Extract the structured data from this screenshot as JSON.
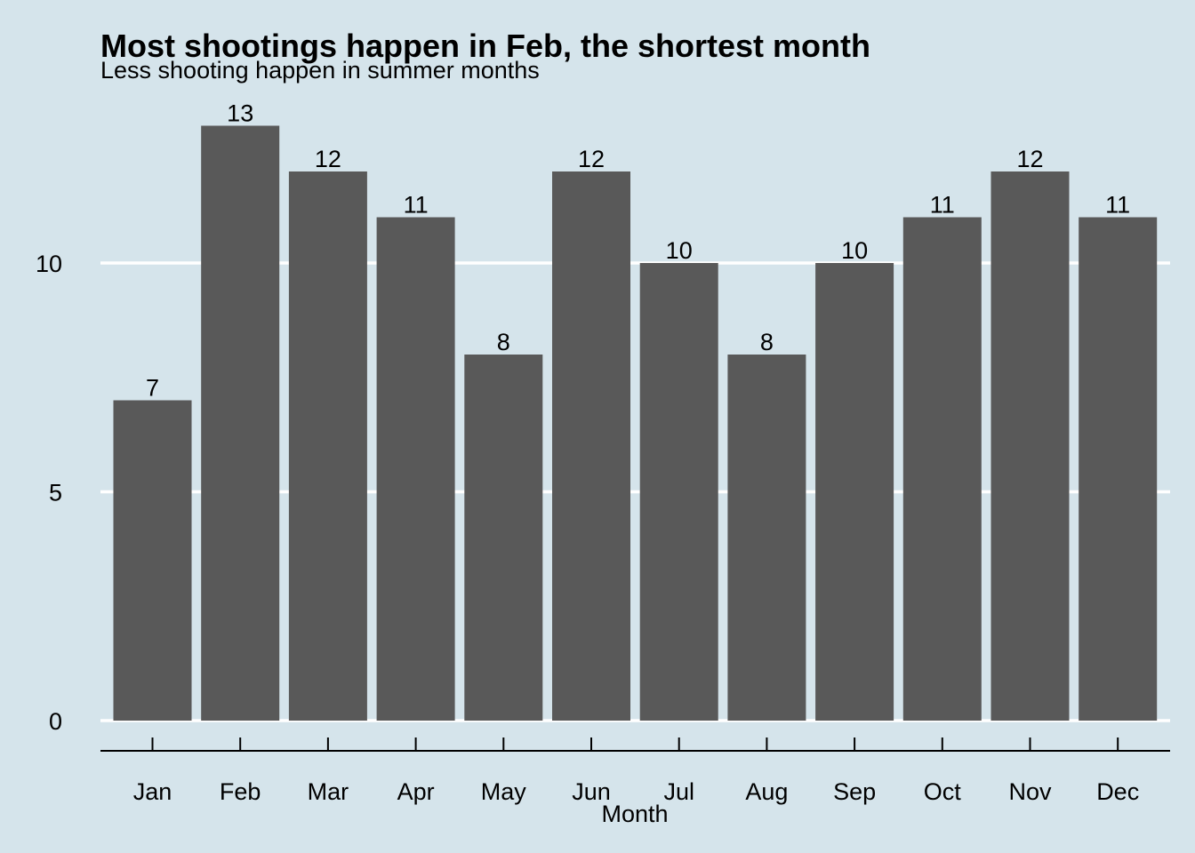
{
  "chart_data": {
    "type": "bar",
    "title": "Most shootings happen in Feb, the shortest month",
    "subtitle": "Less shooting happen in summer months",
    "xlabel": "Month",
    "ylabel": "",
    "categories": [
      "Jan",
      "Feb",
      "Mar",
      "Apr",
      "May",
      "Jun",
      "Jul",
      "Aug",
      "Sep",
      "Oct",
      "Nov",
      "Dec"
    ],
    "values": [
      7,
      13,
      12,
      11,
      8,
      12,
      10,
      8,
      10,
      11,
      12,
      11
    ],
    "yticks": [
      0,
      5,
      10
    ],
    "ylim": [
      0,
      13.65
    ],
    "grid": "horizontal-major",
    "legend": "none",
    "bar_color": "#595959",
    "background_color": "#d5e4eb",
    "gridline_color": "#ffffff"
  }
}
